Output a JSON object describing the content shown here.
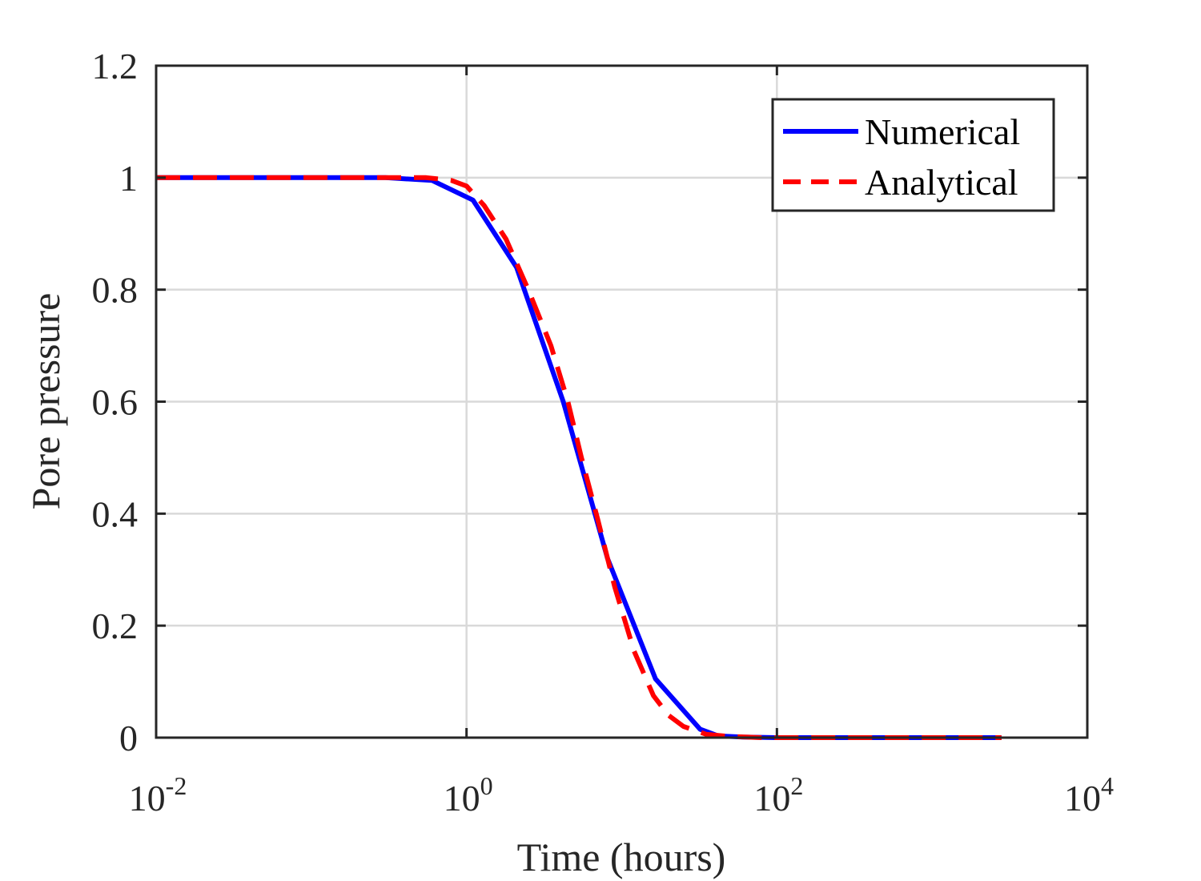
{
  "chart_data": {
    "type": "line",
    "xscale": "log",
    "xlim": [
      0.01,
      10000
    ],
    "ylim": [
      0,
      1.2
    ],
    "grid": true,
    "xlabel": "Time (hours)",
    "ylabel": "Pore pressure",
    "xticks": [
      {
        "value": 0.01,
        "base": "10",
        "exp": "-2"
      },
      {
        "value": 1,
        "base": "10",
        "exp": "0"
      },
      {
        "value": 100,
        "base": "10",
        "exp": "2"
      },
      {
        "value": 10000,
        "base": "10",
        "exp": "4"
      }
    ],
    "yticks": [
      {
        "value": 0,
        "label": "0"
      },
      {
        "value": 0.2,
        "label": "0.2"
      },
      {
        "value": 0.4,
        "label": "0.4"
      },
      {
        "value": 0.6,
        "label": "0.6"
      },
      {
        "value": 0.8,
        "label": "0.8"
      },
      {
        "value": 1.0,
        "label": "1"
      },
      {
        "value": 1.2,
        "label": "1.2"
      }
    ],
    "legend_position": "top-right",
    "series": [
      {
        "name": "Numerical",
        "color": "#0000ff",
        "style": "solid",
        "x": [
          0.01,
          0.15,
          0.3,
          0.6,
          1.1,
          2.1,
          4.2,
          8.1,
          16.5,
          32,
          42,
          60,
          100,
          200,
          500,
          1000,
          2800
        ],
        "y": [
          1.0,
          1.0,
          1.0,
          0.995,
          0.96,
          0.84,
          0.6,
          0.32,
          0.105,
          0.015,
          0.003,
          0.001,
          0.0,
          0.0,
          0.0,
          0.0,
          0.0
        ]
      },
      {
        "name": "Analytical",
        "color": "#ff0000",
        "style": "dashed",
        "x": [
          0.01,
          0.1,
          0.3,
          0.55,
          0.8,
          1.0,
          1.3,
          1.8,
          2.5,
          3.5,
          4.5,
          5.5,
          7.0,
          9.0,
          12,
          16,
          20,
          25,
          35,
          50,
          80,
          200,
          2800
        ],
        "y": [
          1.0,
          1.0,
          1.0,
          1.0,
          0.995,
          0.985,
          0.95,
          0.89,
          0.8,
          0.7,
          0.6,
          0.5,
          0.39,
          0.27,
          0.155,
          0.075,
          0.04,
          0.02,
          0.006,
          0.002,
          0.0,
          0.0,
          0.0
        ]
      }
    ]
  }
}
